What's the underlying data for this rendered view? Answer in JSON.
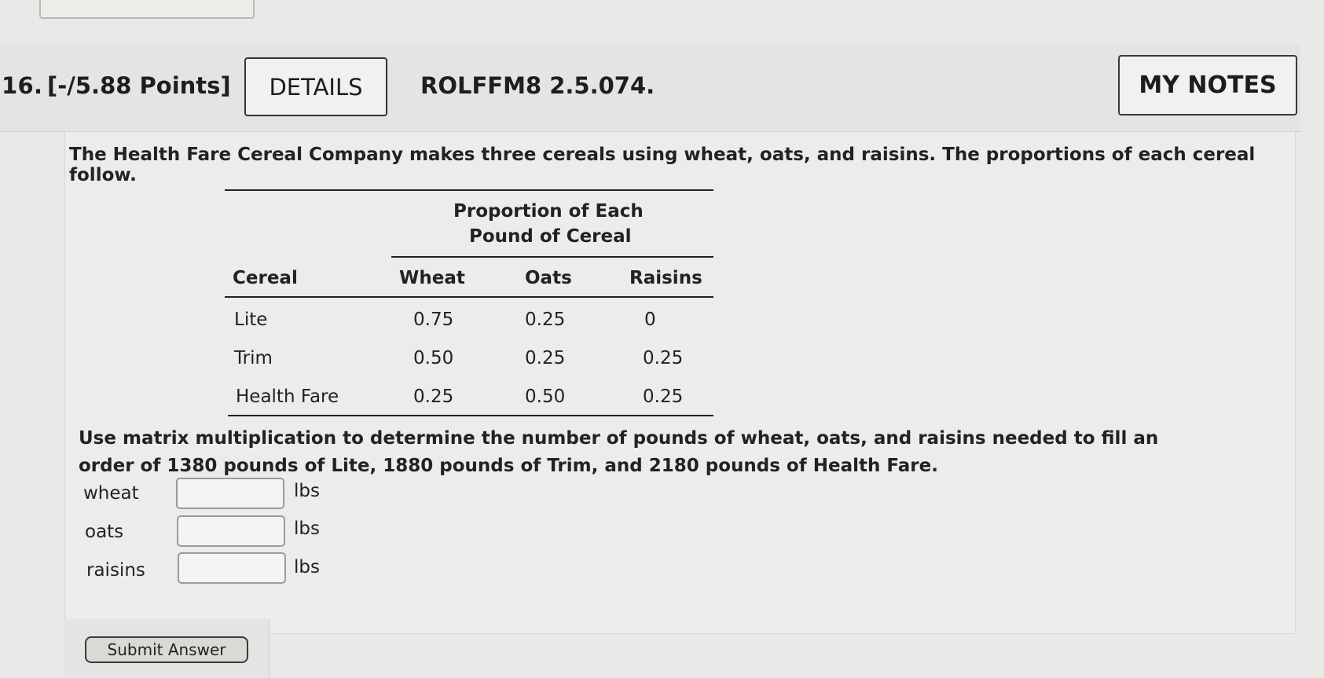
{
  "header": {
    "number": "16.",
    "points": "[-/5.88 Points]",
    "details_label": "DETAILS",
    "code": "ROLFFM8 2.5.074.",
    "notes_label": "MY NOTES"
  },
  "question": {
    "intro": "The Health Fare Cereal Company makes three cereals using wheat, oats, and raisins. The proportions of each cereal follow.",
    "task": "Use matrix multiplication to determine the number of pounds of wheat, oats, and raisins needed to fill an order of 1380 pounds of Lite, 1880 pounds of Trim, and 2180 pounds of Health Fare."
  },
  "table": {
    "group_header_line1": "Proportion of Each",
    "group_header_line2": "Pound of Cereal",
    "columns": [
      "Cereal",
      "Wheat",
      "Oats",
      "Raisins"
    ],
    "rows": [
      [
        "Lite",
        "0.75",
        "0.25",
        "0"
      ],
      [
        "Trim",
        "0.50",
        "0.25",
        "0.25"
      ],
      [
        "Health Fare",
        "0.25",
        "0.50",
        "0.25"
      ]
    ]
  },
  "answers": [
    {
      "label": "wheat",
      "value": "",
      "unit": "lbs"
    },
    {
      "label": "oats",
      "value": "",
      "unit": "lbs"
    },
    {
      "label": "raisins",
      "value": "",
      "unit": "lbs"
    }
  ],
  "submit_label": "Submit Answer"
}
